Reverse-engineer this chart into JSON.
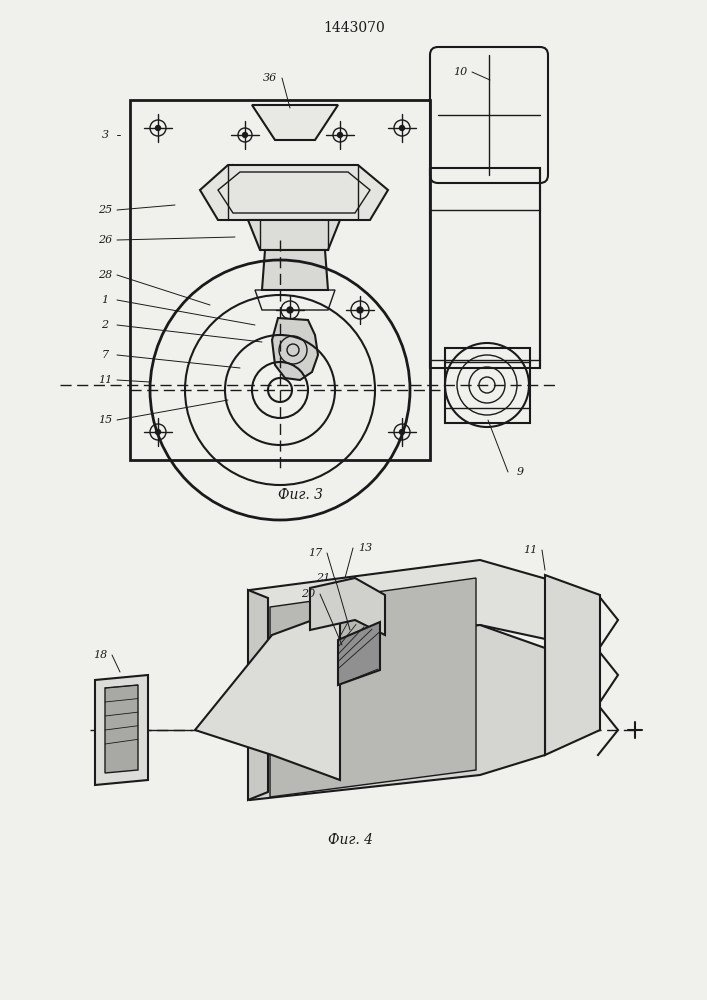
{
  "title": "1443070",
  "bg_color": "#f0f0ec",
  "line_color": "#1a1a1a",
  "fig3_caption": "Фиг. 3",
  "fig4_caption": "Фиг. 4"
}
